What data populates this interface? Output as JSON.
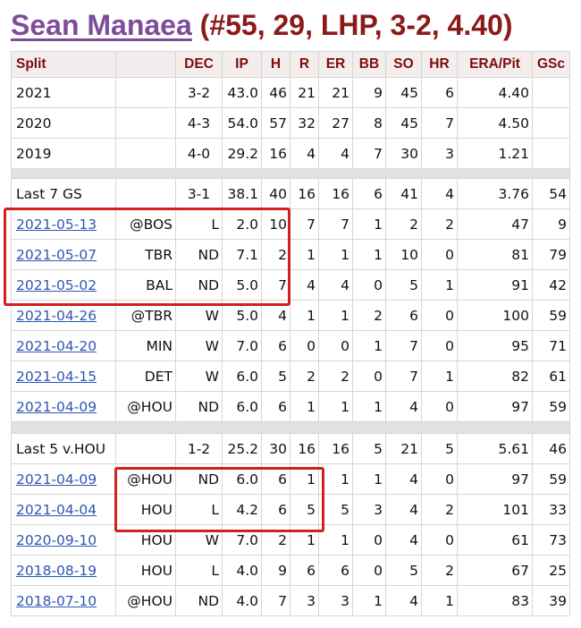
{
  "header": {
    "player_name": "Sean Manaea",
    "player_info": "(#55, 29, LHP, 3-2, 4.40)"
  },
  "columns": [
    "Split",
    "",
    "DEC",
    "IP",
    "H",
    "R",
    "ER",
    "BB",
    "SO",
    "HR",
    "ERA/Pit",
    "GSc"
  ],
  "season_rows": [
    {
      "split": "2021",
      "opp": "",
      "dec": "3-2",
      "ip": "43.0",
      "h": "46",
      "r": "21",
      "er": "21",
      "bb": "9",
      "so": "45",
      "hr": "6",
      "era": "4.40",
      "gsc": ""
    },
    {
      "split": "2020",
      "opp": "",
      "dec": "4-3",
      "ip": "54.0",
      "h": "57",
      "r": "32",
      "er": "27",
      "bb": "8",
      "so": "45",
      "hr": "7",
      "era": "4.50",
      "gsc": ""
    },
    {
      "split": "2019",
      "opp": "",
      "dec": "4-0",
      "ip": "29.2",
      "h": "16",
      "r": "4",
      "er": "4",
      "bb": "7",
      "so": "30",
      "hr": "3",
      "era": "1.21",
      "gsc": ""
    }
  ],
  "last7": {
    "summary": {
      "split": "Last 7 GS",
      "opp": "",
      "dec": "3-1",
      "ip": "38.1",
      "h": "40",
      "r": "16",
      "er": "16",
      "bb": "6",
      "so": "41",
      "hr": "4",
      "era": "3.76",
      "gsc": "54"
    },
    "games": [
      {
        "split": "2021-05-13",
        "opp": "@BOS",
        "dec": "L",
        "ip": "2.0",
        "h": "10",
        "r": "7",
        "er": "7",
        "bb": "1",
        "so": "2",
        "hr": "2",
        "era": "47",
        "gsc": "9"
      },
      {
        "split": "2021-05-07",
        "opp": "TBR",
        "dec": "ND",
        "ip": "7.1",
        "h": "2",
        "r": "1",
        "er": "1",
        "bb": "1",
        "so": "10",
        "hr": "0",
        "era": "81",
        "gsc": "79"
      },
      {
        "split": "2021-05-02",
        "opp": "BAL",
        "dec": "ND",
        "ip": "5.0",
        "h": "7",
        "r": "4",
        "er": "4",
        "bb": "0",
        "so": "5",
        "hr": "1",
        "era": "91",
        "gsc": "42"
      },
      {
        "split": "2021-04-26",
        "opp": "@TBR",
        "dec": "W",
        "ip": "5.0",
        "h": "4",
        "r": "1",
        "er": "1",
        "bb": "2",
        "so": "6",
        "hr": "0",
        "era": "100",
        "gsc": "59"
      },
      {
        "split": "2021-04-20",
        "opp": "MIN",
        "dec": "W",
        "ip": "7.0",
        "h": "6",
        "r": "0",
        "er": "0",
        "bb": "1",
        "so": "7",
        "hr": "0",
        "era": "95",
        "gsc": "71"
      },
      {
        "split": "2021-04-15",
        "opp": "DET",
        "dec": "W",
        "ip": "6.0",
        "h": "5",
        "r": "2",
        "er": "2",
        "bb": "0",
        "so": "7",
        "hr": "1",
        "era": "82",
        "gsc": "61"
      },
      {
        "split": "2021-04-09",
        "opp": "@HOU",
        "dec": "ND",
        "ip": "6.0",
        "h": "6",
        "r": "1",
        "er": "1",
        "bb": "1",
        "so": "4",
        "hr": "0",
        "era": "97",
        "gsc": "59"
      }
    ]
  },
  "last5hou": {
    "summary": {
      "split": "Last 5 v.HOU",
      "opp": "",
      "dec": "1-2",
      "ip": "25.2",
      "h": "30",
      "r": "16",
      "er": "16",
      "bb": "5",
      "so": "21",
      "hr": "5",
      "era": "5.61",
      "gsc": "46"
    },
    "games": [
      {
        "split": "2021-04-09",
        "opp": "@HOU",
        "dec": "ND",
        "ip": "6.0",
        "h": "6",
        "r": "1",
        "er": "1",
        "bb": "1",
        "so": "4",
        "hr": "0",
        "era": "97",
        "gsc": "59"
      },
      {
        "split": "2021-04-04",
        "opp": "HOU",
        "dec": "L",
        "ip": "4.2",
        "h": "6",
        "r": "5",
        "er": "5",
        "bb": "3",
        "so": "4",
        "hr": "2",
        "era": "101",
        "gsc": "33"
      },
      {
        "split": "2020-09-10",
        "opp": "HOU",
        "dec": "W",
        "ip": "7.0",
        "h": "2",
        "r": "1",
        "er": "1",
        "bb": "0",
        "so": "4",
        "hr": "0",
        "era": "61",
        "gsc": "73"
      },
      {
        "split": "2018-08-19",
        "opp": "HOU",
        "dec": "L",
        "ip": "4.0",
        "h": "9",
        "r": "6",
        "er": "6",
        "bb": "0",
        "so": "5",
        "hr": "2",
        "era": "67",
        "gsc": "25"
      },
      {
        "split": "2018-07-10",
        "opp": "@HOU",
        "dec": "ND",
        "ip": "4.0",
        "h": "7",
        "r": "3",
        "er": "3",
        "bb": "1",
        "so": "4",
        "hr": "1",
        "era": "83",
        "gsc": "39"
      }
    ]
  },
  "colors": {
    "highlight_box": "#d21f1f",
    "title_name": "#7d4d9a",
    "title_info": "#8b1a1a",
    "header_text": "#7d0c0c",
    "link": "#2f56b4",
    "separator": "#e2e2e2"
  }
}
